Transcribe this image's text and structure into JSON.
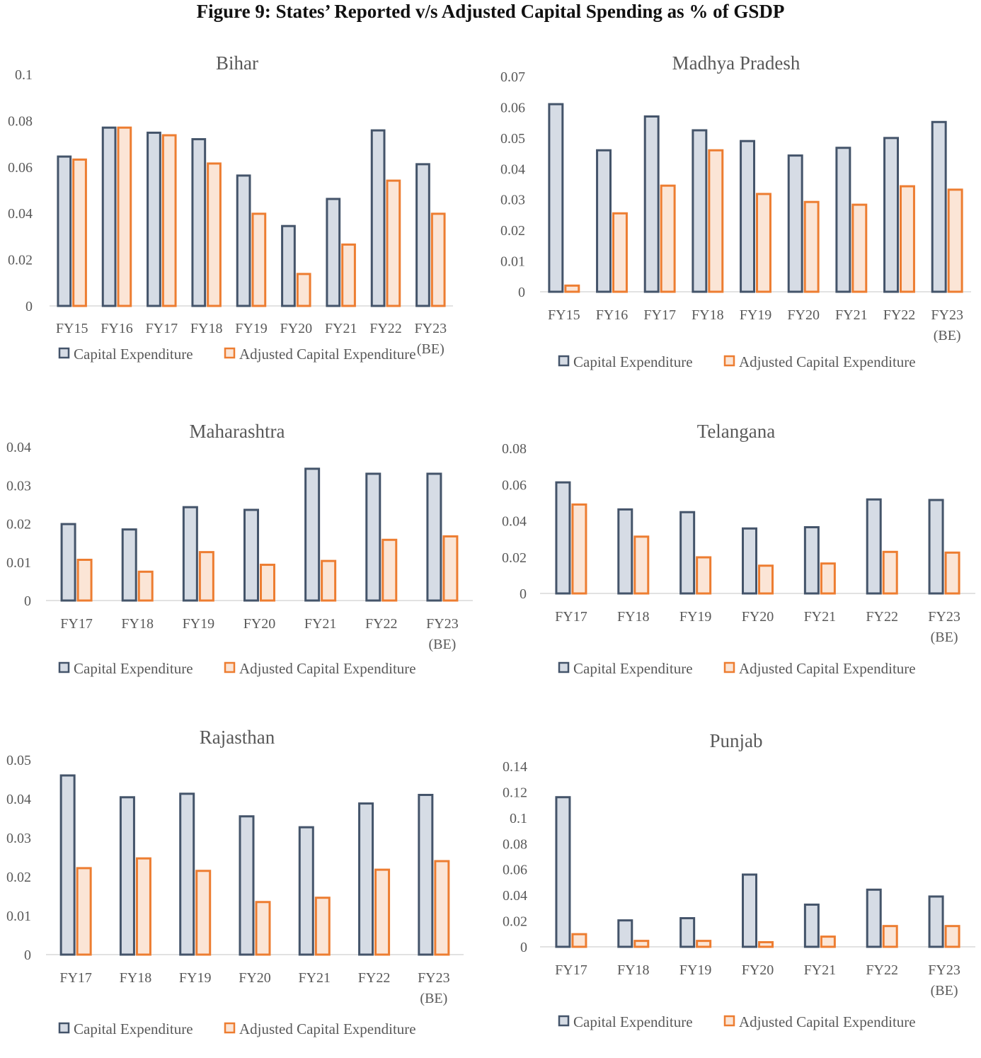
{
  "figure_title": "Figure 9: States’ Reported v/s Adjusted Capital Spending as % of GSDP",
  "colors": {
    "capex_fill": "#d6dce5",
    "capex_stroke": "#44546a",
    "adj_fill": "#fbe5d6",
    "adj_stroke": "#ed7d31"
  },
  "chart_data": [
    {
      "type": "bar",
      "title": "Bihar",
      "categories": [
        "FY15",
        "FY16",
        "FY17",
        "FY18",
        "FY19",
        "FY20",
        "FY21",
        "FY22",
        "FY23 (BE)"
      ],
      "series": [
        {
          "name": "Capital Expenditure",
          "values": [
            0.0645,
            0.077,
            0.0748,
            0.072,
            0.0563,
            0.0345,
            0.0462,
            0.0758,
            0.0612
          ]
        },
        {
          "name": "Adjusted Capital Expenditure",
          "values": [
            0.0632,
            0.077,
            0.0737,
            0.0615,
            0.0398,
            0.0138,
            0.0265,
            0.0541,
            0.0398
          ]
        }
      ],
      "ylim": [
        0,
        0.1
      ],
      "yticks": [
        "0",
        "0.02",
        "0.04",
        "0.06",
        "0.08",
        "0.1"
      ],
      "legend": "bottom"
    },
    {
      "type": "bar",
      "title": "Madhya Pradesh",
      "categories": [
        "FY15",
        "FY16",
        "FY17",
        "FY18",
        "FY19",
        "FY20",
        "FY21",
        "FY22",
        "FY23 (BE)"
      ],
      "series": [
        {
          "name": "Capital Expenditure",
          "values": [
            0.061,
            0.046,
            0.057,
            0.0525,
            0.049,
            0.0443,
            0.0468,
            0.05,
            0.0552
          ]
        },
        {
          "name": "Adjusted Capital Expenditure",
          "values": [
            0.002,
            0.0255,
            0.0345,
            0.046,
            0.0318,
            0.0292,
            0.0283,
            0.0343,
            0.0332
          ]
        }
      ],
      "ylim": [
        0,
        0.07
      ],
      "yticks": [
        "0",
        "0.01",
        "0.02",
        "0.03",
        "0.04",
        "0.05",
        "0.06",
        "0.07"
      ],
      "legend": "bottom"
    },
    {
      "type": "bar",
      "title": "Maharashtra",
      "categories": [
        "FY17",
        "FY18",
        "FY19",
        "FY20",
        "FY21",
        "FY22",
        "FY23 (BE)"
      ],
      "series": [
        {
          "name": "Capital Expenditure",
          "values": [
            0.0199,
            0.0185,
            0.0243,
            0.0236,
            0.0343,
            0.033,
            0.033
          ]
        },
        {
          "name": "Adjusted Capital Expenditure",
          "values": [
            0.0106,
            0.0075,
            0.0126,
            0.0093,
            0.0103,
            0.0158,
            0.0167
          ]
        }
      ],
      "ylim": [
        0,
        0.04
      ],
      "yticks": [
        "0",
        "0.01",
        "0.02",
        "0.03",
        "0.04"
      ],
      "legend": "bottom"
    },
    {
      "type": "bar",
      "title": "Telangana",
      "categories": [
        "FY17",
        "FY18",
        "FY19",
        "FY20",
        "FY21",
        "FY22",
        "FY23 (BE)"
      ],
      "series": [
        {
          "name": "Capital Expenditure",
          "values": [
            0.0612,
            0.0463,
            0.0448,
            0.0358,
            0.0365,
            0.0518,
            0.0515
          ]
        },
        {
          "name": "Adjusted Capital Expenditure",
          "values": [
            0.049,
            0.0313,
            0.0199,
            0.0153,
            0.0165,
            0.0229,
            0.0225
          ]
        }
      ],
      "ylim": [
        0,
        0.08
      ],
      "yticks": [
        "0",
        "0.02",
        "0.04",
        "0.06",
        "0.08"
      ],
      "legend": "bottom"
    },
    {
      "type": "bar",
      "title": "Rajasthan",
      "categories": [
        "FY17",
        "FY18",
        "FY19",
        "FY20",
        "FY21",
        "FY22",
        "FY23 (BE)"
      ],
      "series": [
        {
          "name": "Capital Expenditure",
          "values": [
            0.046,
            0.0404,
            0.0413,
            0.0355,
            0.0327,
            0.0388,
            0.041
          ]
        },
        {
          "name": "Adjusted Capital Expenditure",
          "values": [
            0.0222,
            0.0247,
            0.0215,
            0.0135,
            0.0146,
            0.0218,
            0.024
          ]
        }
      ],
      "ylim": [
        0,
        0.05
      ],
      "yticks": [
        "0",
        "0.01",
        "0.02",
        "0.03",
        "0.04",
        "0.05"
      ],
      "legend": "bottom"
    },
    {
      "type": "bar",
      "title": "Punjab",
      "categories": [
        "FY17",
        "FY18",
        "FY19",
        "FY20",
        "FY21",
        "FY22",
        "FY23 (BE)"
      ],
      "series": [
        {
          "name": "Capital Expenditure",
          "values": [
            0.116,
            0.0205,
            0.0222,
            0.056,
            0.0327,
            0.0443,
            0.039
          ]
        },
        {
          "name": "Adjusted Capital Expenditure",
          "values": [
            0.0098,
            0.0046,
            0.0046,
            0.0036,
            0.0079,
            0.0161,
            0.0161
          ]
        }
      ],
      "ylim": [
        0,
        0.14
      ],
      "yticks": [
        "0",
        "0.02",
        "0.04",
        "0.06",
        "0.08",
        "0.1",
        "0.12",
        "0.14"
      ],
      "legend": "bottom"
    }
  ]
}
